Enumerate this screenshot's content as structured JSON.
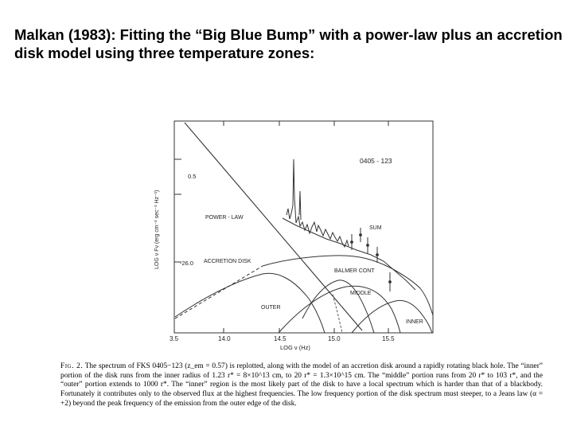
{
  "slide": {
    "title": "Malkan (1983): Fitting the “Big Blue Bump” with a power-law plus an accretion disk model using three temperature zones:"
  },
  "chart_data": {
    "type": "line",
    "object_label": "0405 - 123",
    "xlabel": "LOG ν (Hz)",
    "ylabel": "LOG ν Fν (erg cm⁻² sec⁻¹ Hz⁻¹)",
    "x_ticks": [
      "3.5",
      "14.0",
      "14.5",
      "15.0",
      "15.5"
    ],
    "y_ticks": [
      "-26.0"
    ],
    "scale_bar_label": "0.5",
    "xlim": [
      13.5,
      16.0
    ],
    "series": [
      {
        "name": "POWER - LAW"
      },
      {
        "name": "SUM"
      },
      {
        "name": "ACCRETION DISK"
      },
      {
        "name": "BALMER CONT"
      },
      {
        "name": "MIDDLE"
      },
      {
        "name": "OUTER"
      },
      {
        "name": "INNER"
      }
    ]
  },
  "caption": {
    "fig_label": "Fig. 2.",
    "text": "The spectrum of FKS 0405−123 (z_em = 0.57) is replotted, along with the model of an accretion disk around a rapidly rotating black hole. The “inner” portion of the disk runs from the inner radius of 1.23 r* = 8×10^13 cm, to 20 r* = 1.3×10^15 cm. The “middle” portion runs from 20 r* to 103 r*, and the “outer” portion extends to 1000 r*. The “inner” region is the most likely part of the disk to have a local spectrum which is harder than that of a blackbody. Fortunately it contributes only to the observed flux at the highest frequencies. The low frequency portion of the disk spectrum must steeper, to a Jeans law (α = +2) beyond the peak frequency of the emission from the outer edge of the disk."
  }
}
